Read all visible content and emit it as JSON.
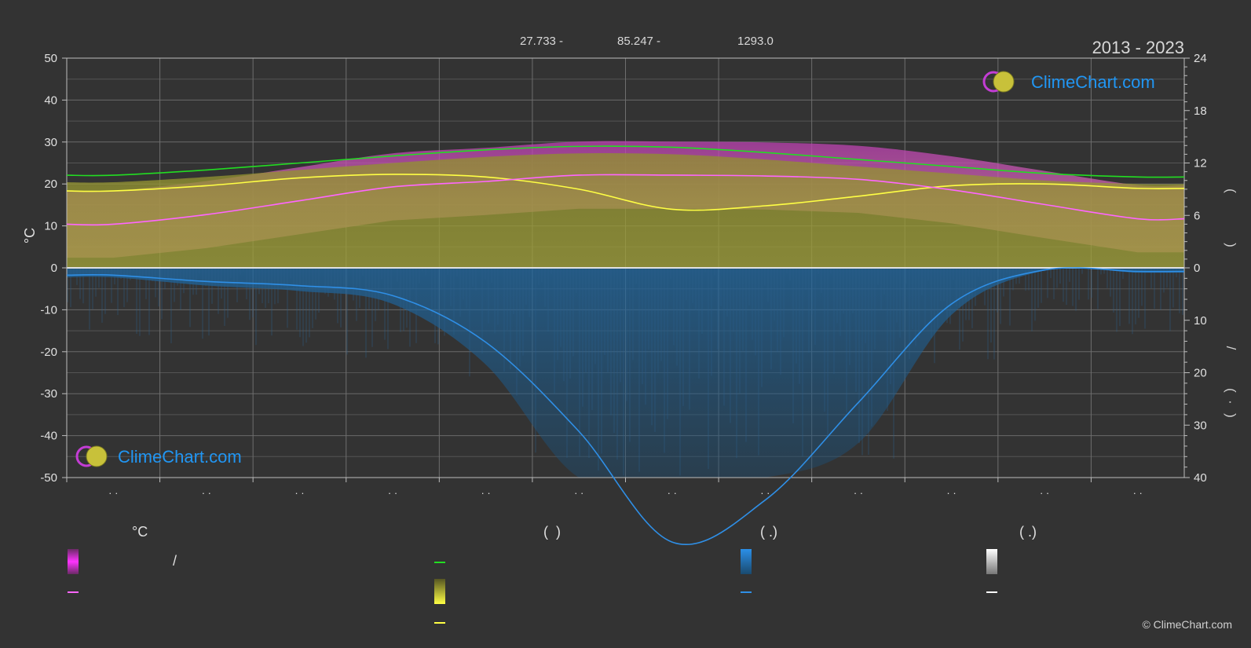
{
  "chart_data": {
    "type": "area",
    "period": "2013 - 2023",
    "header": {
      "latitude": "27.733 -",
      "longitude": "85.247 -",
      "elevation": "1293.0"
    },
    "left_axis": {
      "label": "°C",
      "range": [
        -50,
        50
      ],
      "ticks": [
        50,
        40,
        30,
        20,
        10,
        0,
        -10,
        -20,
        -30,
        -40,
        -50
      ]
    },
    "right_axis_top": {
      "range": [
        0,
        24
      ],
      "ticks": [
        24,
        18,
        12,
        6,
        0
      ],
      "label_glyphs": [
        "(",
        ")"
      ]
    },
    "right_axis_bottom": {
      "range": [
        0,
        40
      ],
      "ticks": [
        0,
        10,
        20,
        30,
        40
      ],
      "label_glyphs": [
        "/",
        "(",
        "·",
        ")"
      ]
    },
    "x_tick_labels": [
      "· ·",
      "· ·",
      "· ·",
      "· ·",
      "· ·",
      "· ·",
      "· ·",
      "· ·",
      "· ·",
      "· ·",
      "· ·",
      "· ·"
    ],
    "months": [
      1,
      2,
      3,
      4,
      5,
      6,
      7,
      8,
      9,
      10,
      11,
      12
    ],
    "series": [
      {
        "key": "daylight",
        "color": "#22dd22",
        "axis": "sun_hours",
        "values": [
          10.6,
          11.2,
          12.0,
          12.8,
          13.5,
          13.9,
          13.8,
          13.2,
          12.4,
          11.6,
          10.8,
          10.4
        ]
      },
      {
        "key": "sunshine",
        "color": "#ffff44",
        "axis": "sun_hours",
        "values": [
          8.8,
          9.4,
          10.3,
          10.7,
          10.4,
          9.0,
          6.7,
          7.1,
          8.2,
          9.4,
          9.6,
          9.1
        ]
      },
      {
        "key": "mean_temperature",
        "color": "#ff66ff",
        "axis": "temperature",
        "values": [
          10.4,
          12.7,
          16.0,
          19.3,
          20.6,
          22.1,
          22.1,
          21.9,
          21.1,
          18.6,
          15.1,
          11.7
        ]
      },
      {
        "key": "precipitation",
        "color": "#2f8fe6",
        "axis": "precipitation",
        "values": [
          1.4,
          2.6,
          3.4,
          5.3,
          14.2,
          31.2,
          52.3,
          44.3,
          25.7,
          6.9,
          0.4,
          0.7
        ]
      }
    ],
    "bands": [
      {
        "key": "temperature_range",
        "color": "#d946c8"
      },
      {
        "key": "sunshine_daily",
        "color": "#9a9a30"
      },
      {
        "key": "precipitation_daily",
        "color": "#1f6aa8"
      }
    ],
    "legend": {
      "groups": [
        {
          "title": "°C",
          "items": [
            {
              "kind": "box",
              "colors": [
                "#c93ec2",
                "#ff33ff"
              ],
              "label": "/"
            },
            {
              "kind": "line",
              "color": "#ff66ff",
              "label": ""
            }
          ]
        },
        {
          "title": "(  )",
          "items": [
            {
              "kind": "line",
              "color": "#22dd22",
              "label": ""
            },
            {
              "kind": "box",
              "colors": [
                "#666622",
                "#ffff44"
              ],
              "label": ""
            },
            {
              "kind": "line",
              "color": "#ffff44",
              "label": ""
            }
          ]
        },
        {
          "title": "( .)",
          "items": [
            {
              "kind": "box",
              "colors": [
                "#1f5a8a",
                "#2b8fe8"
              ],
              "label": ""
            },
            {
              "kind": "line",
              "color": "#2f8fe6",
              "label": ""
            }
          ]
        },
        {
          "title": "( .)",
          "items": [
            {
              "kind": "box",
              "colors": [
                "#888888",
                "#ffffff"
              ],
              "label": ""
            },
            {
              "kind": "line",
              "color": "#ffffff",
              "label": ""
            }
          ]
        }
      ]
    }
  },
  "branding": {
    "logo_text": "ClimeChart.com",
    "copyright": "© ClimeChart.com",
    "brand_color": "#2196f3"
  }
}
